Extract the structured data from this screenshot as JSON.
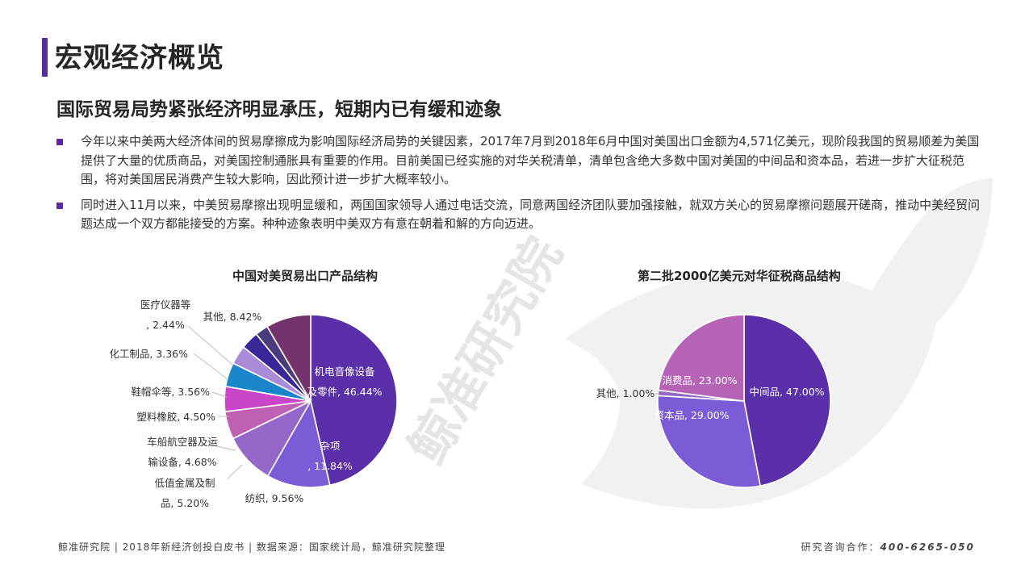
{
  "page": {
    "title": "宏观经济概览",
    "subtitle": "国际贸易局势紧张经济明显承压，短期内已有缓和迹象",
    "bullets": [
      "今年以来中美两大经济体间的贸易摩擦成为影响国际经济局势的关键因素，2017年7月到2018年6月中国对美国出口金额为4,571亿美元，现阶段我国的贸易顺差为美国提供了大量的优质商品，对美国控制通胀具有重要的作用。目前美国已经实施的对华关税清单，清单包含绝大多数中国对美国的中间品和资本品，若进一步扩大征税范围，将对美国居民消费产生较大影响，因此预计进一步扩大概率较小。",
      "同时进入11月以来，中美贸易摩擦出现明显缓和，两国国家领导人通过电话交流，同意两国经济团队要加强接触，就双方关心的贸易摩擦问题展开磋商，推动中美经贸问题达成一个双方都能接受的方案。种种迹象表明中美双方有意在朝着和解的方向迈进。"
    ],
    "watermark": "鲸准研究院",
    "footer": {
      "left": "鲸准研究院 | 2018年新经济创投白皮书 | 数据来源：国家统计局，鲸准研究院整理",
      "right_label": "研究咨询合作：",
      "phone": "400-6265-050"
    },
    "colors": {
      "accent": "#5b2d9c"
    }
  },
  "chart_data": [
    {
      "type": "pie",
      "title": "中国对美贸易出口产品结构",
      "slices": [
        {
          "label": "机电音像设备及零件",
          "value": 46.44,
          "value_text": "46.44%",
          "color": "#5b2fa7"
        },
        {
          "label": "杂项",
          "value": 11.84,
          "value_text": "11.84%",
          "color": "#7b5bd6"
        },
        {
          "label": "纺织",
          "value": 9.56,
          "value_text": "9.56%",
          "color": "#9467c9"
        },
        {
          "label": "低值金属及制品",
          "value": 5.2,
          "value_text": "5.20%",
          "color": "#c060b5"
        },
        {
          "label": "车船航空器及运输设备",
          "value": 4.68,
          "value_text": "4.68%",
          "color": "#c946c9"
        },
        {
          "label": "塑料橡胶",
          "value": 4.5,
          "value_text": "4.50%",
          "color": "#1a85c8"
        },
        {
          "label": "鞋帽伞等",
          "value": 3.56,
          "value_text": "3.56%",
          "color": "#a98bd8"
        },
        {
          "label": "化工制品",
          "value": 3.36,
          "value_text": "3.36%",
          "color": "#3a2898"
        },
        {
          "label": "医疗仪器等",
          "value": 2.44,
          "value_text": "2.44%",
          "color": "#4a3c7c"
        },
        {
          "label": "其他",
          "value": 8.42,
          "value_text": "8.42%",
          "color": "#74336c"
        }
      ]
    },
    {
      "type": "pie",
      "title": "第二批2000亿美元对华征税商品结构",
      "slices": [
        {
          "label": "中间品",
          "value": 47.0,
          "value_text": "47.00%",
          "color": "#5b2fa7"
        },
        {
          "label": "资本品",
          "value": 29.0,
          "value_text": "29.00%",
          "color": "#7b5bd6"
        },
        {
          "label": "其他",
          "value": 1.0,
          "value_text": "1.00%",
          "color": "#9467c9"
        },
        {
          "label": "消费品",
          "value": 23.0,
          "value_text": "23.00%",
          "color": "#b564b5"
        }
      ]
    }
  ]
}
